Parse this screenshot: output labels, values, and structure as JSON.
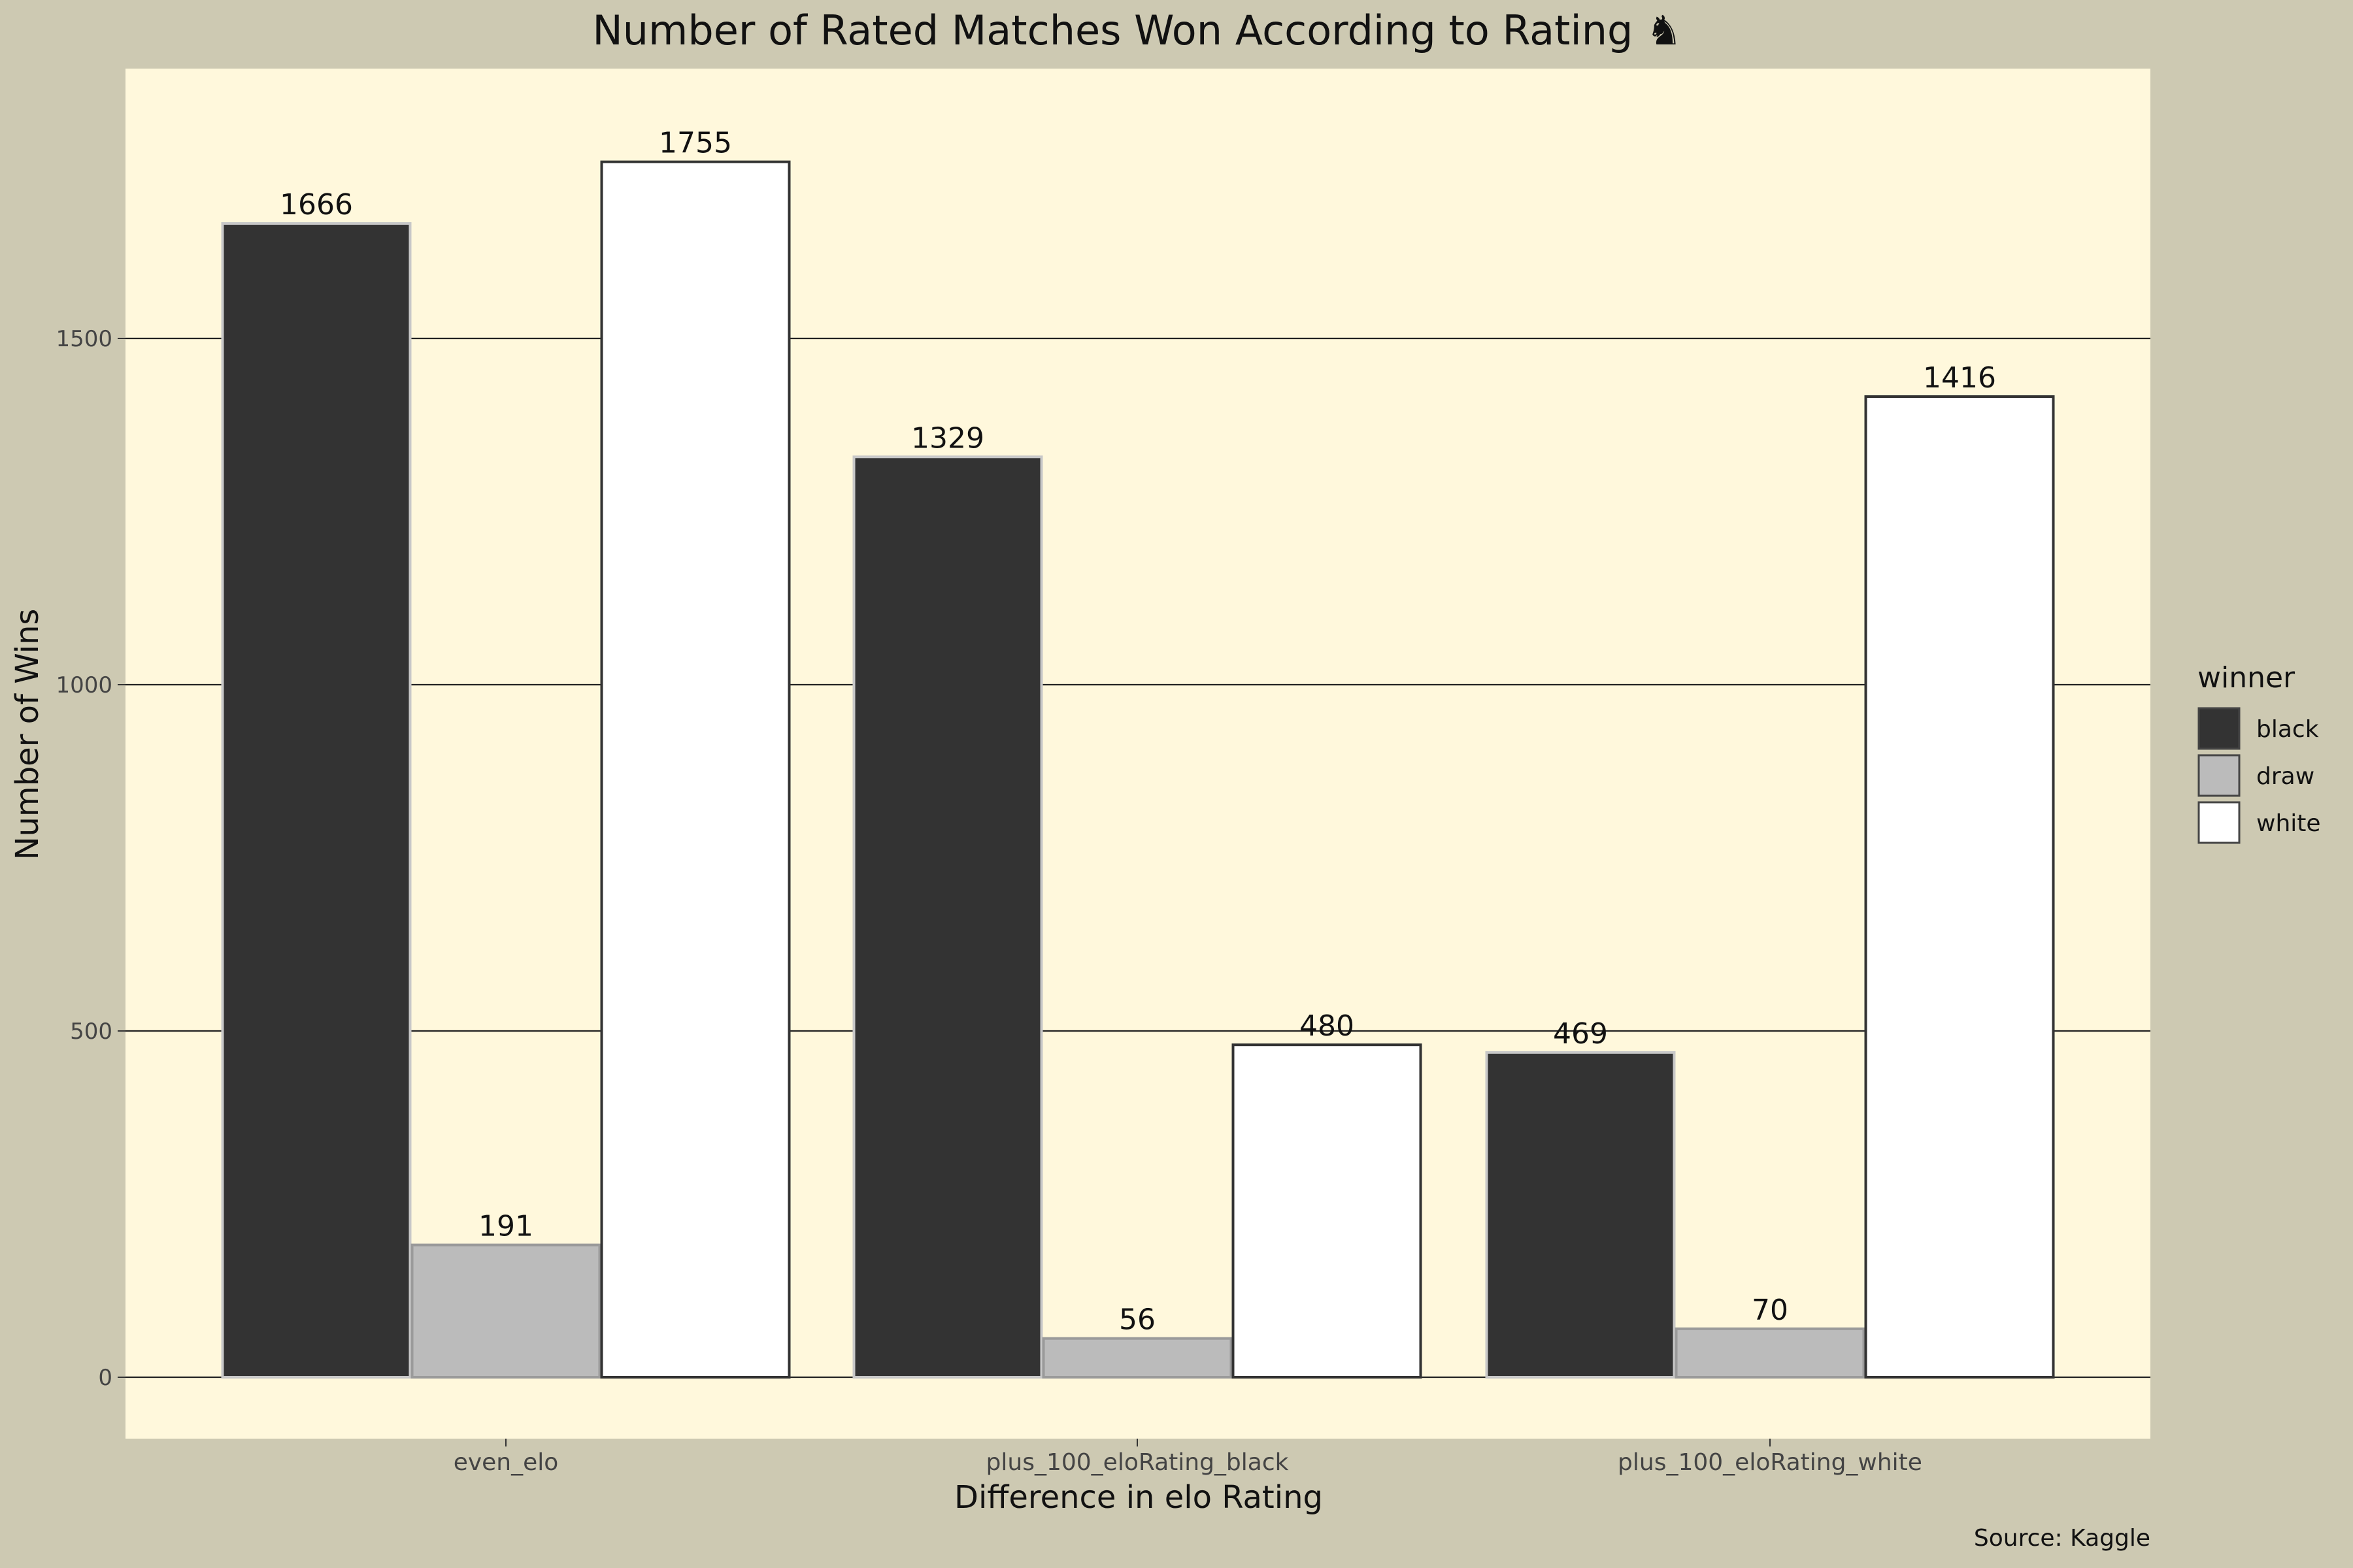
{
  "chart_data": {
    "type": "bar",
    "title": "Number of Rated Matches Won According to Rating ♞",
    "xlabel": "Difference in elo Rating",
    "ylabel": "Number of Wins",
    "caption": "Source: Kaggle",
    "categories": [
      "even_elo",
      "plus_100_eloRating_black",
      "plus_100_eloRating_white"
    ],
    "series": [
      {
        "name": "black",
        "values": [
          1666,
          1329,
          469
        ],
        "fill": "#333333",
        "stroke": "#c8c8c8"
      },
      {
        "name": "draw",
        "values": [
          191,
          56,
          70
        ],
        "fill": "#bbbbbb",
        "stroke": "#9a9a9a"
      },
      {
        "name": "white",
        "values": [
          1755,
          480,
          1416
        ],
        "fill": "#ffffff",
        "stroke": "#333333"
      }
    ],
    "yticks": [
      0,
      500,
      1000,
      1500
    ],
    "ylim": [
      -90,
      1900
    ],
    "grid": "horizontal-major",
    "legend": {
      "title": "winner",
      "position": "right"
    },
    "colors": {
      "background": "#cdc9b2",
      "panel": "#fff8dc",
      "gridline": "#222222"
    }
  }
}
